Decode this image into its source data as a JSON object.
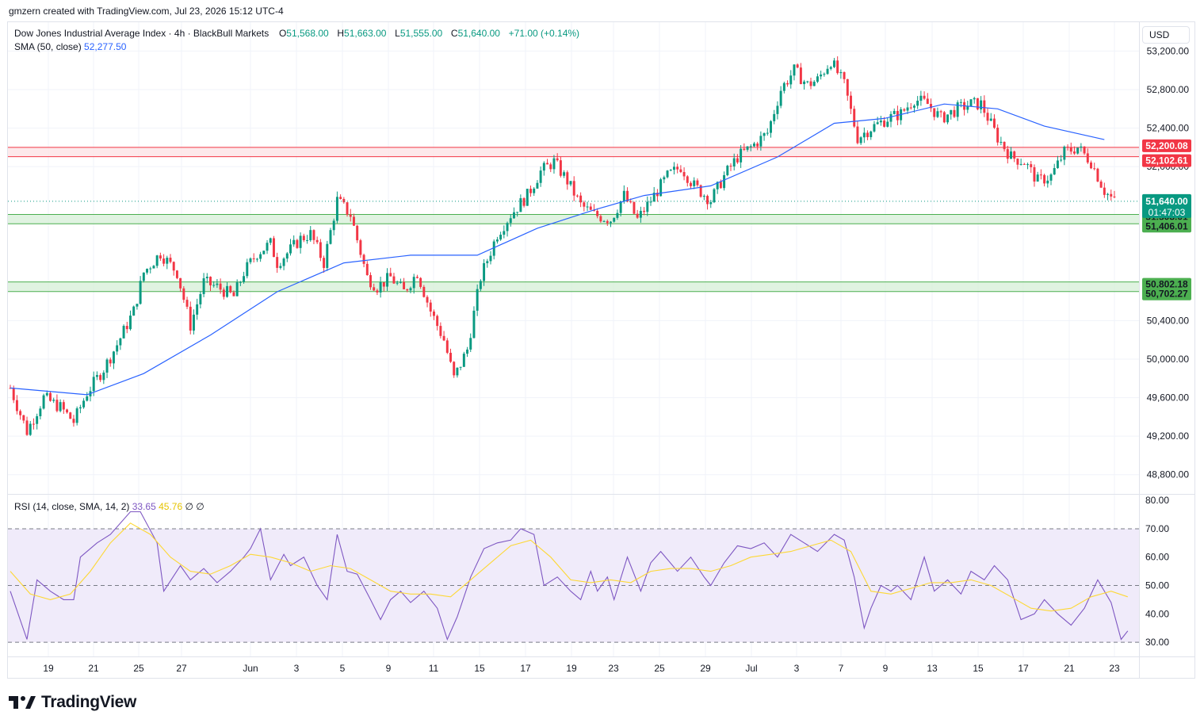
{
  "credit": "gmzern created with TradingView.com, Jul 23, 2026 15:12 UTC-4",
  "brand": "TradingView",
  "currency": "USD",
  "legend": {
    "symbol": "Dow Jones Industrial Average Index · 4h · BlackBull Markets",
    "open_label": "O",
    "open": "51,568.00",
    "high_label": "H",
    "high": "51,663.00",
    "low_label": "L",
    "low": "51,555.00",
    "close_label": "C",
    "close": "51,640.00",
    "change": "+71.00 (+0.14%)",
    "sma_label": "SMA (50, close)",
    "sma_value": "52,277.50",
    "rsi_label": "RSI (14, close, SMA, 14, 2)",
    "rsi_value": "33.65",
    "rsi_ma_value": "45.76",
    "rsi_extra1": "∅",
    "rsi_extra2": "∅"
  },
  "colors": {
    "up": "#089981",
    "down": "#f23645",
    "sma": "#2962ff",
    "rsi": "#7e57c2",
    "rsi_ma": "#fdd835",
    "resistance": "#f23645",
    "support": "#4caf50",
    "support_fill": "#d8f0da",
    "resistance_fill": "#fce4e6",
    "rsi_band": "#f0ebfa"
  },
  "chart_data": [
    {
      "type": "candlestick",
      "timeframe": "4h",
      "ylim": [
        48600,
        53500
      ],
      "y_ticks": [
        "53,200.00",
        "52,800.00",
        "52,400.00",
        "52,000.00",
        "50,400.00",
        "50,000.00",
        "49,600.00",
        "49,200.00",
        "48,800.00"
      ],
      "y_tick_values": [
        53200,
        52800,
        52400,
        52000,
        50400,
        50000,
        49600,
        49200,
        48800
      ],
      "x_ticks": [
        "19",
        "21",
        "25",
        "27",
        "Jun",
        "3",
        "5",
        "9",
        "11",
        "15",
        "17",
        "19",
        "23",
        "25",
        "29",
        "Jul",
        "3",
        "7",
        "9",
        "13",
        "15",
        "17",
        "21",
        "23"
      ],
      "close_price_label": "51,640.00",
      "countdown": "01:47:03",
      "zones": [
        {
          "kind": "resistance",
          "top": 52200.08,
          "bottom": 52102.61,
          "top_label": "52,200.08",
          "bottom_label": "52,102.61"
        },
        {
          "kind": "support",
          "top": 51503.01,
          "bottom": 51406.01,
          "top_label": "51,503.01",
          "bottom_label": "51,406.01"
        },
        {
          "kind": "support",
          "top": 50802.18,
          "bottom": 50702.27,
          "top_label": "50,802.18",
          "bottom_label": "50,702.27"
        }
      ],
      "close_path": [
        [
          0,
          49700
        ],
        [
          5,
          49250
        ],
        [
          10,
          49600
        ],
        [
          15,
          49500
        ],
        [
          19,
          49350
        ],
        [
          23,
          49650
        ],
        [
          28,
          49900
        ],
        [
          32,
          50150
        ],
        [
          37,
          50500
        ],
        [
          40,
          50900
        ],
        [
          45,
          51100
        ],
        [
          50,
          50900
        ],
        [
          54,
          50350
        ],
        [
          58,
          50800
        ],
        [
          62,
          50750
        ],
        [
          67,
          50650
        ],
        [
          70,
          50900
        ],
        [
          74,
          51100
        ],
        [
          78,
          51200
        ],
        [
          80,
          51000
        ],
        [
          83,
          51100
        ],
        [
          87,
          51250
        ],
        [
          90,
          51300
        ],
        [
          94,
          51000
        ],
        [
          98,
          51650
        ],
        [
          102,
          51500
        ],
        [
          107,
          50850
        ],
        [
          110,
          50750
        ],
        [
          114,
          50850
        ],
        [
          118,
          50700
        ],
        [
          122,
          50900
        ],
        [
          126,
          50500
        ],
        [
          130,
          50200
        ],
        [
          133,
          49800
        ],
        [
          137,
          50100
        ],
        [
          141,
          50850
        ],
        [
          146,
          51300
        ],
        [
          150,
          51500
        ],
        [
          155,
          51700
        ],
        [
          159,
          51950
        ],
        [
          163,
          52050
        ],
        [
          167,
          51850
        ],
        [
          171,
          51600
        ],
        [
          175,
          51500
        ],
        [
          180,
          51450
        ],
        [
          184,
          51700
        ],
        [
          188,
          51450
        ],
        [
          192,
          51650
        ],
        [
          197,
          51900
        ],
        [
          201,
          52000
        ],
        [
          205,
          51800
        ],
        [
          210,
          51650
        ],
        [
          214,
          51900
        ],
        [
          218,
          52100
        ],
        [
          222,
          52200
        ],
        [
          227,
          52350
        ],
        [
          231,
          52800
        ],
        [
          235,
          53000
        ],
        [
          239,
          52850
        ],
        [
          242,
          52900
        ],
        [
          246,
          53100
        ],
        [
          250,
          52850
        ],
        [
          254,
          52300
        ],
        [
          258,
          52400
        ],
        [
          263,
          52500
        ],
        [
          267,
          52550
        ],
        [
          271,
          52700
        ],
        [
          275,
          52650
        ],
        [
          279,
          52500
        ],
        [
          284,
          52600
        ],
        [
          288,
          52650
        ],
        [
          291,
          52650
        ],
        [
          296,
          52300
        ],
        [
          300,
          52100
        ],
        [
          304,
          52050
        ],
        [
          308,
          51850
        ],
        [
          312,
          51900
        ],
        [
          316,
          52150
        ],
        [
          320,
          52200
        ],
        [
          324,
          52050
        ],
        [
          328,
          51750
        ],
        [
          331,
          51640
        ]
      ],
      "sma_path": [
        [
          0,
          49700
        ],
        [
          23,
          49630
        ],
        [
          40,
          49850
        ],
        [
          60,
          50250
        ],
        [
          80,
          50700
        ],
        [
          100,
          51000
        ],
        [
          120,
          51080
        ],
        [
          140,
          51080
        ],
        [
          158,
          51360
        ],
        [
          175,
          51550
        ],
        [
          190,
          51700
        ],
        [
          210,
          51800
        ],
        [
          230,
          52100
        ],
        [
          247,
          52450
        ],
        [
          262,
          52500
        ],
        [
          280,
          52650
        ],
        [
          296,
          52600
        ],
        [
          310,
          52420
        ],
        [
          328,
          52280
        ]
      ]
    },
    {
      "type": "line",
      "name": "RSI",
      "ylim": [
        25,
        82
      ],
      "y_ticks": [
        "80.00",
        "70.00",
        "60.00",
        "50.00",
        "40.00",
        "30.00"
      ],
      "y_tick_values": [
        80,
        70,
        60,
        50,
        40,
        30
      ],
      "bands": [
        70,
        50,
        30
      ],
      "rsi_path": [
        [
          0,
          48
        ],
        [
          5,
          31
        ],
        [
          8,
          52
        ],
        [
          12,
          48
        ],
        [
          16,
          45
        ],
        [
          19,
          45
        ],
        [
          21,
          60
        ],
        [
          26,
          65
        ],
        [
          30,
          68
        ],
        [
          36,
          76
        ],
        [
          39,
          76
        ],
        [
          44,
          65
        ],
        [
          46,
          48
        ],
        [
          51,
          57
        ],
        [
          54,
          52
        ],
        [
          58,
          56
        ],
        [
          62,
          51
        ],
        [
          66,
          55
        ],
        [
          70,
          60
        ],
        [
          72,
          63
        ],
        [
          75,
          70
        ],
        [
          78,
          52
        ],
        [
          82,
          61
        ],
        [
          84,
          57
        ],
        [
          88,
          60
        ],
        [
          92,
          50
        ],
        [
          95,
          45
        ],
        [
          98,
          68
        ],
        [
          101,
          55
        ],
        [
          104,
          54
        ],
        [
          108,
          45
        ],
        [
          111,
          38
        ],
        [
          114,
          45
        ],
        [
          117,
          48
        ],
        [
          120,
          44
        ],
        [
          124,
          48
        ],
        [
          128,
          42
        ],
        [
          131,
          31
        ],
        [
          134,
          39
        ],
        [
          138,
          53
        ],
        [
          142,
          63
        ],
        [
          146,
          65
        ],
        [
          150,
          66
        ],
        [
          153,
          70
        ],
        [
          157,
          68
        ],
        [
          160,
          50
        ],
        [
          164,
          53
        ],
        [
          168,
          48
        ],
        [
          171,
          45
        ],
        [
          174,
          55
        ],
        [
          176,
          48
        ],
        [
          179,
          53
        ],
        [
          181,
          45
        ],
        [
          185,
          60
        ],
        [
          189,
          48
        ],
        [
          192,
          58
        ],
        [
          195,
          62
        ],
        [
          200,
          55
        ],
        [
          204,
          60
        ],
        [
          208,
          53
        ],
        [
          210,
          50
        ],
        [
          214,
          58
        ],
        [
          218,
          64
        ],
        [
          222,
          63
        ],
        [
          226,
          65
        ],
        [
          230,
          60
        ],
        [
          234,
          68
        ],
        [
          238,
          65
        ],
        [
          242,
          62
        ],
        [
          247,
          68
        ],
        [
          250,
          66
        ],
        [
          253,
          53
        ],
        [
          256,
          35
        ],
        [
          258,
          42
        ],
        [
          261,
          50
        ],
        [
          264,
          48
        ],
        [
          266,
          50
        ],
        [
          270,
          45
        ],
        [
          274,
          60
        ],
        [
          277,
          48
        ],
        [
          281,
          52
        ],
        [
          285,
          47
        ],
        [
          288,
          55
        ],
        [
          292,
          52
        ],
        [
          295,
          57
        ],
        [
          299,
          52
        ],
        [
          303,
          38
        ],
        [
          307,
          40
        ],
        [
          310,
          45
        ],
        [
          314,
          40
        ],
        [
          318,
          36
        ],
        [
          322,
          42
        ],
        [
          326,
          52
        ],
        [
          330,
          44
        ],
        [
          333,
          31
        ],
        [
          335,
          34
        ]
      ],
      "rsi_ma_path": [
        [
          0,
          55
        ],
        [
          6,
          47
        ],
        [
          12,
          45
        ],
        [
          18,
          47
        ],
        [
          24,
          55
        ],
        [
          30,
          65
        ],
        [
          36,
          72
        ],
        [
          42,
          68
        ],
        [
          48,
          60
        ],
        [
          54,
          55
        ],
        [
          60,
          54
        ],
        [
          66,
          57
        ],
        [
          72,
          61
        ],
        [
          78,
          60
        ],
        [
          84,
          58
        ],
        [
          90,
          55
        ],
        [
          96,
          57
        ],
        [
          102,
          56
        ],
        [
          108,
          52
        ],
        [
          114,
          48
        ],
        [
          120,
          47
        ],
        [
          126,
          47
        ],
        [
          132,
          46
        ],
        [
          138,
          52
        ],
        [
          144,
          58
        ],
        [
          150,
          64
        ],
        [
          156,
          66
        ],
        [
          162,
          60
        ],
        [
          168,
          52
        ],
        [
          174,
          51
        ],
        [
          180,
          52
        ],
        [
          186,
          51
        ],
        [
          192,
          55
        ],
        [
          198,
          56
        ],
        [
          204,
          56
        ],
        [
          210,
          55
        ],
        [
          216,
          57
        ],
        [
          222,
          60
        ],
        [
          228,
          61
        ],
        [
          234,
          62
        ],
        [
          240,
          64
        ],
        [
          246,
          66
        ],
        [
          252,
          62
        ],
        [
          258,
          48
        ],
        [
          264,
          47
        ],
        [
          270,
          49
        ],
        [
          276,
          51
        ],
        [
          282,
          51
        ],
        [
          288,
          52
        ],
        [
          294,
          50
        ],
        [
          300,
          46
        ],
        [
          306,
          42
        ],
        [
          312,
          41
        ],
        [
          318,
          42
        ],
        [
          324,
          46
        ],
        [
          330,
          48
        ],
        [
          335,
          46
        ]
      ]
    }
  ]
}
